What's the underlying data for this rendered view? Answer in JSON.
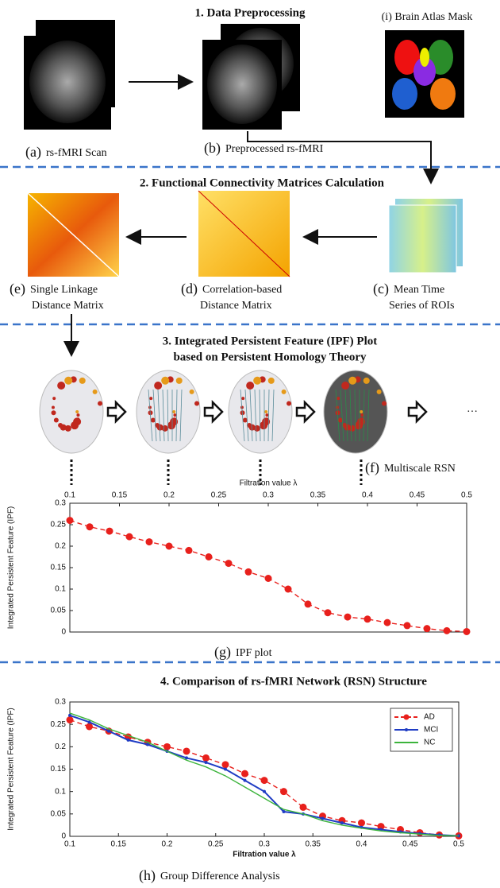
{
  "sections": [
    {
      "title": "1. Data Preprocessing"
    },
    {
      "title": "2. Functional Connectivity Matrices Calculation"
    },
    {
      "title": "3. Integrated Persistent Feature (IPF) Plot",
      "subtitle": "based on Persistent Homology Theory"
    },
    {
      "title": "4. Comparison of rs-fMRI Network (RSN) Structure"
    }
  ],
  "panels": {
    "i": {
      "label": "(i) Brain Atlas Mask"
    },
    "a": {
      "tag": "(a)",
      "label": "rs-fMRI Scan"
    },
    "b": {
      "tag": "(b)",
      "label": "Preprocessed rs-fMRI"
    },
    "e": {
      "tag": "(e)",
      "lines": [
        "Single Linkage",
        "Distance Matrix"
      ]
    },
    "d": {
      "tag": "(d)",
      "lines": [
        "Correlation-based",
        "Distance Matrix"
      ]
    },
    "c": {
      "tag": "(c)",
      "lines": [
        "Mean Time",
        "Series of ROIs"
      ]
    },
    "f": {
      "tag": "(f)",
      "label": "Multiscale RSN"
    },
    "ellipsis": "…",
    "g": {
      "tag": "(g)",
      "label": "IPF plot"
    },
    "h": {
      "tag": "(h)",
      "label": "Group Difference Analysis"
    }
  },
  "chart_data": [
    {
      "type": "line",
      "xlabel": "Filtration value λ",
      "ylabel": "Integrated Persistent Feature (IPF)",
      "color": "#e8201c",
      "style": "dashed",
      "marker": "circle",
      "x": [
        0.1,
        0.12,
        0.14,
        0.16,
        0.18,
        0.2,
        0.22,
        0.24,
        0.26,
        0.28,
        0.3,
        0.32,
        0.34,
        0.36,
        0.38,
        0.4,
        0.42,
        0.44,
        0.46,
        0.48,
        0.5
      ],
      "values": [
        0.26,
        0.245,
        0.235,
        0.222,
        0.21,
        0.2,
        0.19,
        0.175,
        0.16,
        0.14,
        0.125,
        0.1,
        0.065,
        0.045,
        0.035,
        0.03,
        0.022,
        0.015,
        0.008,
        0.003,
        0.001
      ],
      "xlim": [
        0.1,
        0.5
      ],
      "ylim": [
        0,
        0.3
      ],
      "xticks": [
        0.1,
        0.15,
        0.2,
        0.25,
        0.3,
        0.35,
        0.4,
        0.45,
        0.5
      ],
      "yticks": [
        0,
        0.05,
        0.1,
        0.15,
        0.2,
        0.25,
        0.3
      ],
      "xaxis_position": "top"
    },
    {
      "type": "line",
      "xlabel": "Filtration value λ",
      "ylabel": "Integrated Persistent Feature (IPF)",
      "legend": "top-right",
      "xaxis_position": "bottom",
      "x": [
        0.1,
        0.12,
        0.14,
        0.16,
        0.18,
        0.2,
        0.22,
        0.24,
        0.26,
        0.28,
        0.3,
        0.32,
        0.34,
        0.36,
        0.38,
        0.4,
        0.42,
        0.44,
        0.46,
        0.48,
        0.5
      ],
      "series": [
        {
          "name": "AD",
          "color": "#e8201c",
          "style": "dashed",
          "marker": "circle",
          "values": [
            0.26,
            0.245,
            0.235,
            0.222,
            0.21,
            0.2,
            0.19,
            0.175,
            0.16,
            0.14,
            0.125,
            0.1,
            0.065,
            0.045,
            0.035,
            0.03,
            0.022,
            0.015,
            0.008,
            0.003,
            0.001
          ]
        },
        {
          "name": "MCI",
          "color": "#1f3cc4",
          "style": "solid",
          "marker": "dot",
          "values": [
            0.27,
            0.255,
            0.235,
            0.215,
            0.205,
            0.19,
            0.175,
            0.165,
            0.15,
            0.125,
            0.1,
            0.055,
            0.05,
            0.04,
            0.03,
            0.02,
            0.015,
            0.01,
            0.006,
            0.003,
            0.001
          ]
        },
        {
          "name": "NC",
          "color": "#3cb43c",
          "style": "solid",
          "marker": "none",
          "values": [
            0.275,
            0.26,
            0.24,
            0.225,
            0.21,
            0.19,
            0.17,
            0.155,
            0.135,
            0.11,
            0.085,
            0.06,
            0.05,
            0.035,
            0.025,
            0.018,
            0.012,
            0.008,
            0.005,
            0.002,
            0.001
          ]
        }
      ],
      "xlim": [
        0.1,
        0.5
      ],
      "ylim": [
        0,
        0.3
      ],
      "xticks": [
        0.1,
        0.15,
        0.2,
        0.25,
        0.3,
        0.35,
        0.4,
        0.45,
        0.5
      ],
      "yticks": [
        0,
        0.05,
        0.1,
        0.15,
        0.2,
        0.25,
        0.3
      ]
    }
  ]
}
